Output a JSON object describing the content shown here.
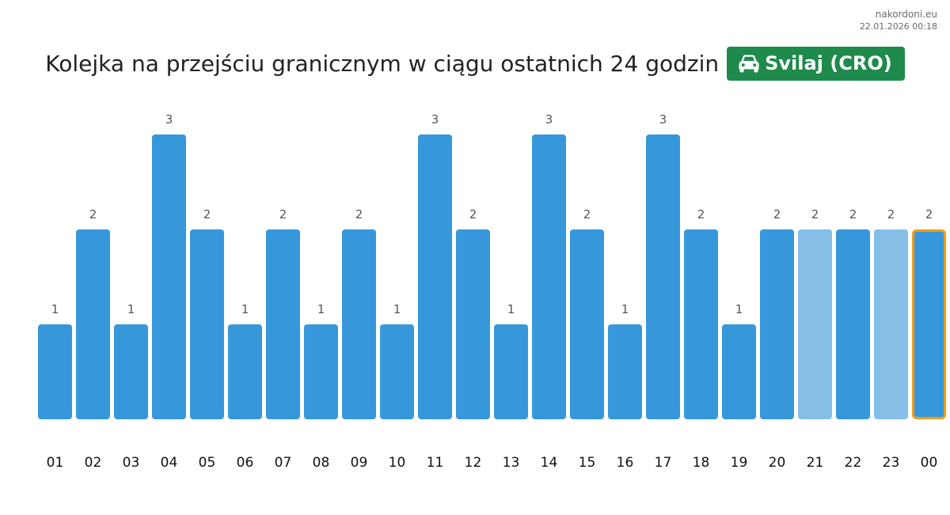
{
  "source": {
    "site": "nakordoni.eu",
    "timestamp": "22.01.2026 00:18"
  },
  "header": {
    "title": "Kolejka na przejściu granicznym w ciągu ostatnich 24 godzin",
    "badge_icon": "car-icon",
    "badge_label": "Svilaj (CRO)",
    "badge_color": "#1e8a4c"
  },
  "colors": {
    "bar": "#3698db",
    "bar_light": "#85bfe8",
    "highlight_border": "#f39c12",
    "value_label": "#555555",
    "tick_label": "#111111"
  },
  "chart_data": {
    "type": "bar",
    "categories": [
      "01",
      "02",
      "03",
      "04",
      "05",
      "06",
      "07",
      "08",
      "09",
      "10",
      "11",
      "12",
      "13",
      "14",
      "15",
      "16",
      "17",
      "18",
      "19",
      "20",
      "21",
      "22",
      "23",
      "00"
    ],
    "values": [
      1,
      2,
      1,
      3,
      2,
      1,
      2,
      1,
      2,
      1,
      3,
      2,
      1,
      3,
      2,
      1,
      3,
      2,
      1,
      2,
      2,
      2,
      2,
      2
    ],
    "light_categories": [
      "21",
      "23"
    ],
    "highlighted_category": "00",
    "data_labels": true,
    "ylim": [
      0,
      3
    ],
    "grid": false,
    "legend": "none",
    "title": "",
    "xlabel": "",
    "ylabel": ""
  }
}
